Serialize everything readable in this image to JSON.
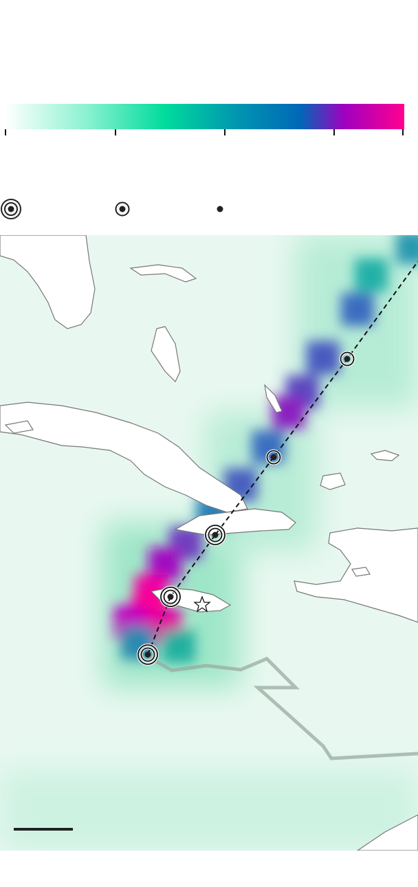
{
  "colorbar": {
    "stops": [
      "#ffffff",
      "#8ef2d2",
      "#00dc9c",
      "#0096b0",
      "#0068b8",
      "#a000c0",
      "#ff0090"
    ],
    "ticks": 5
  },
  "legend": {
    "symbols": [
      "double-ring-marker",
      "single-ring-marker",
      "dot-marker"
    ]
  },
  "map": {
    "sea_color": "#e8f8f0",
    "land_color": "#ffffff",
    "coast_color": "#777777",
    "track_color": "#111111",
    "boundary_color": "#9aaba0",
    "track_markers": [
      "single-ring",
      "single-ring",
      "double-ring",
      "double-ring",
      "double-ring"
    ],
    "storm_marker": "star-icon",
    "scale_bar": true
  }
}
